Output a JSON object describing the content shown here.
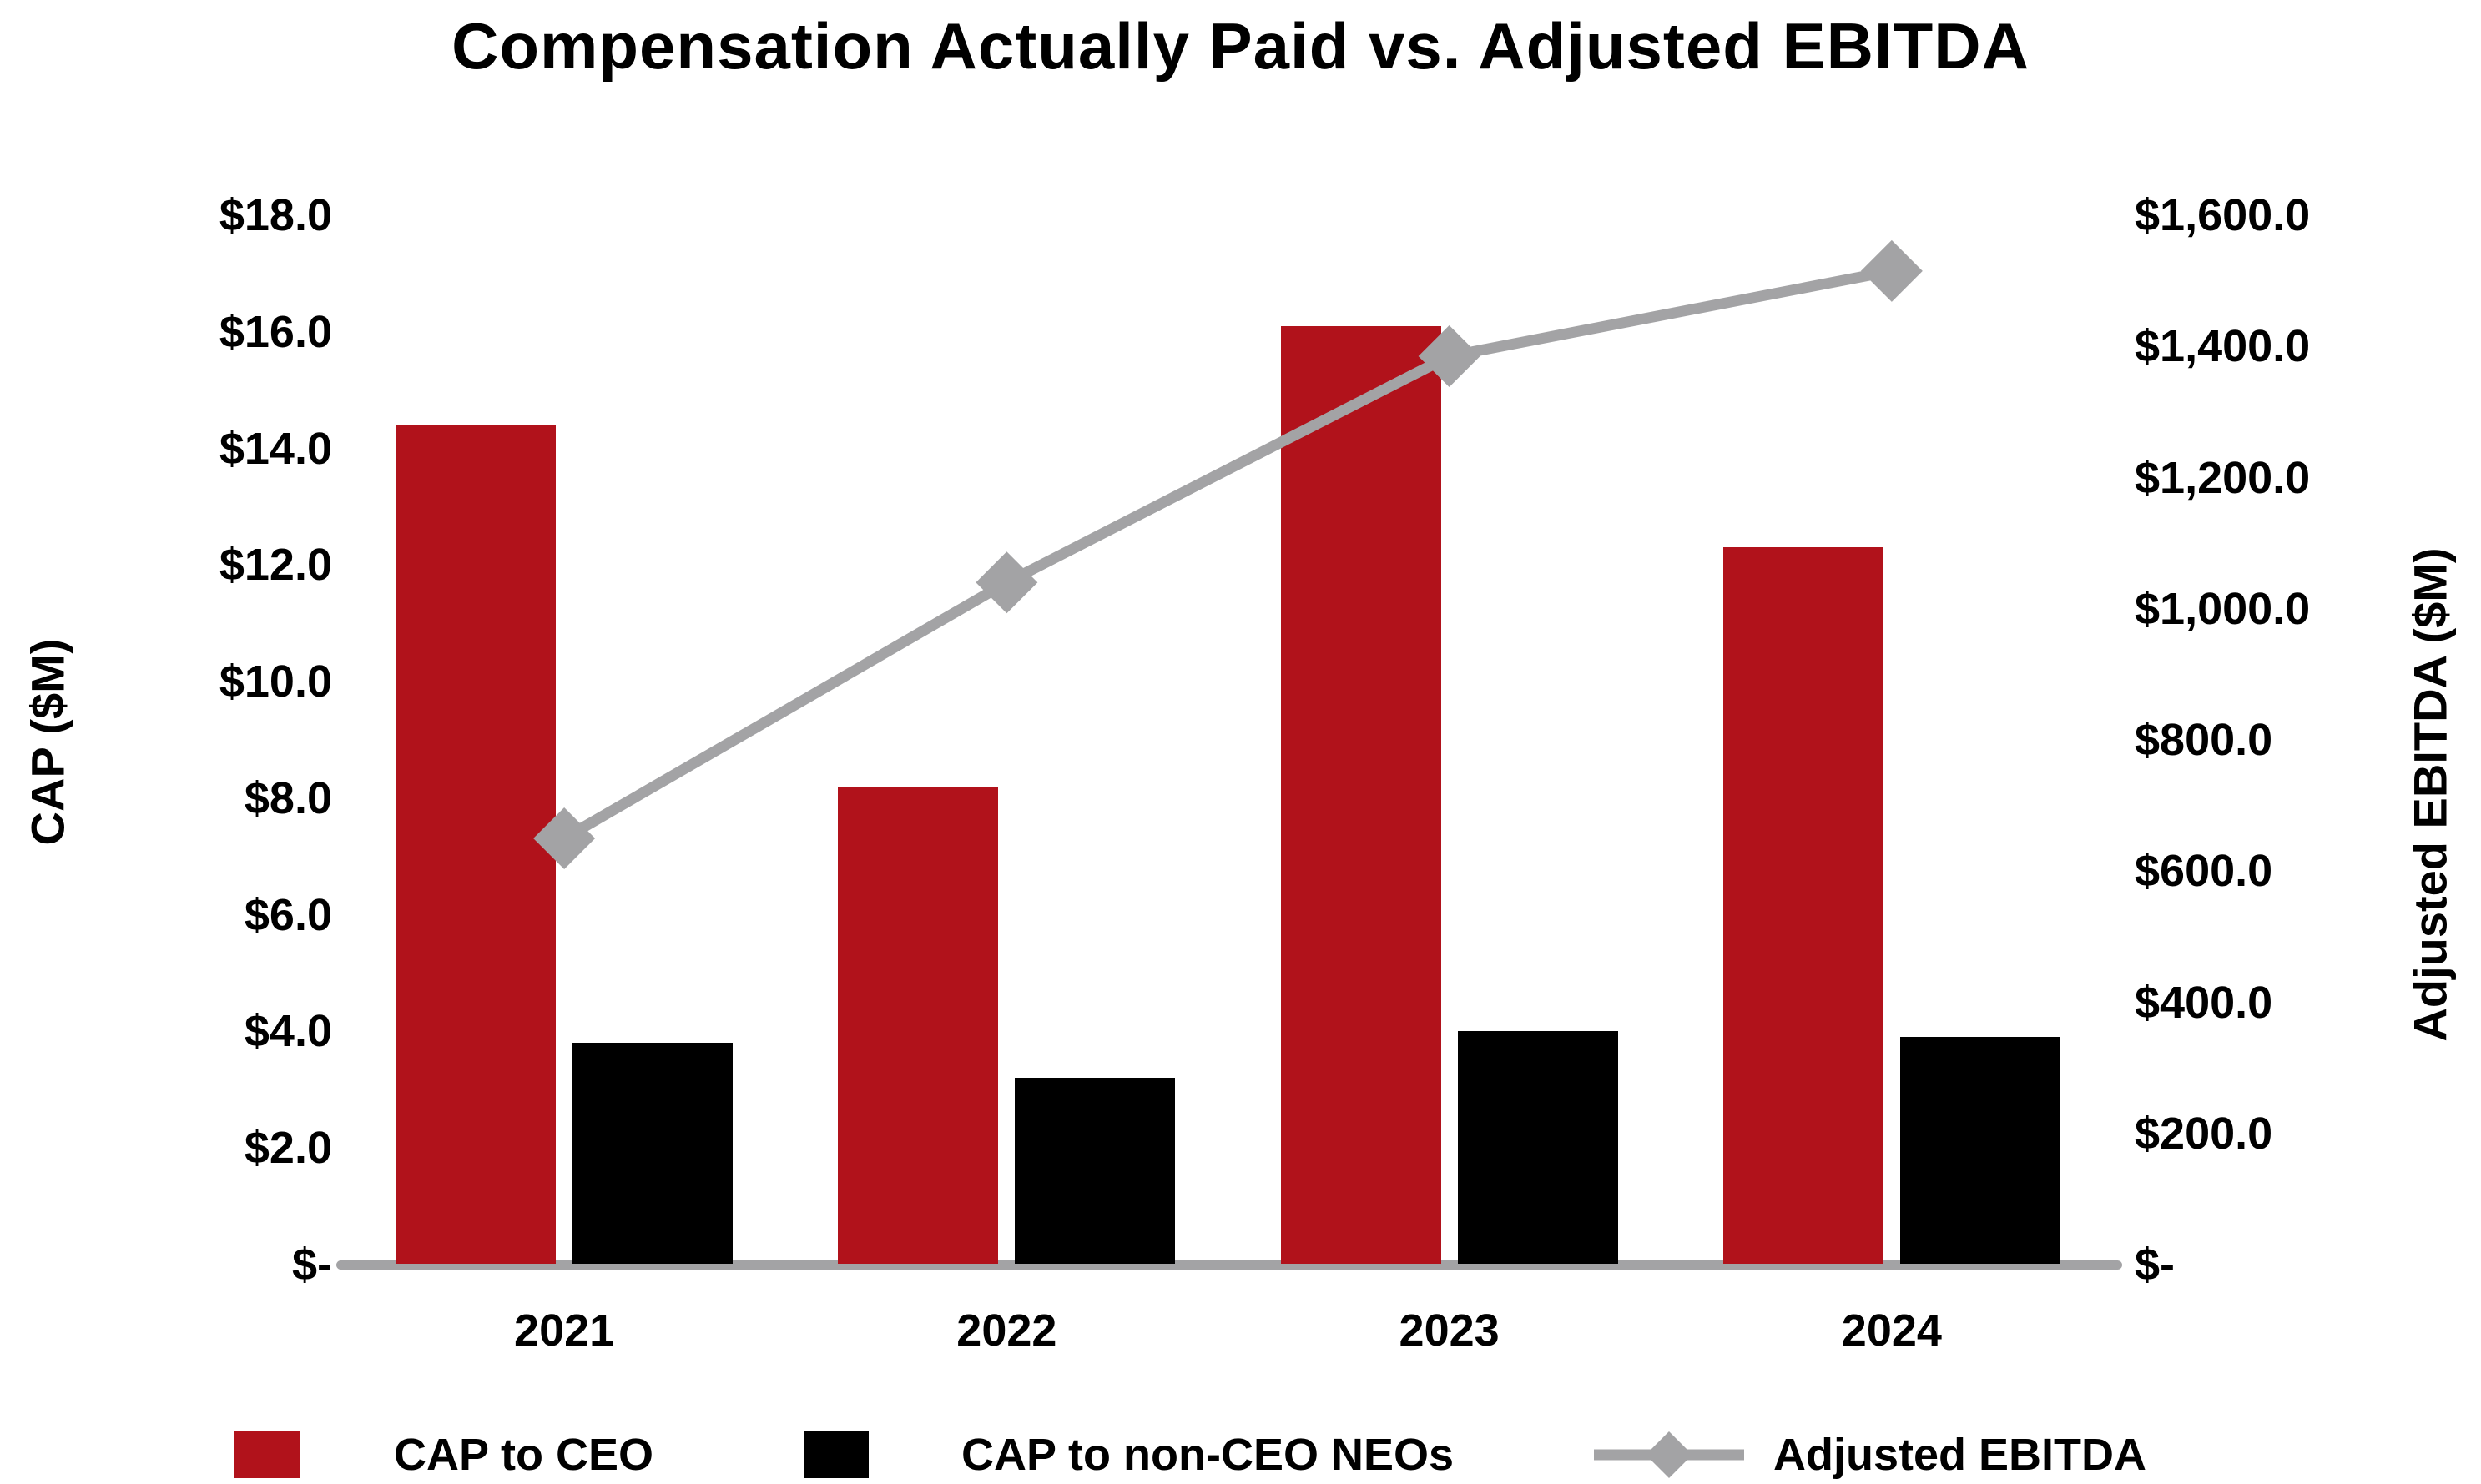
{
  "title": "Compensation Actually Paid vs. Adjusted EBITDA",
  "left_axis": {
    "title": "CAP ($M)",
    "ticks": [
      {
        "label": "$18.0",
        "value": 18
      },
      {
        "label": "$16.0",
        "value": 16
      },
      {
        "label": "$14.0",
        "value": 14
      },
      {
        "label": "$12.0",
        "value": 12
      },
      {
        "label": "$10.0",
        "value": 10
      },
      {
        "label": "$8.0",
        "value": 8
      },
      {
        "label": "$6.0",
        "value": 6
      },
      {
        "label": "$4.0",
        "value": 4
      },
      {
        "label": "$2.0",
        "value": 2
      },
      {
        "label": "$-",
        "value": 0
      }
    ]
  },
  "right_axis": {
    "title": "Adjusted EBITDA ($M)",
    "ticks": [
      {
        "label": "$1,600.0",
        "value": 1600
      },
      {
        "label": "$1,400.0",
        "value": 1400
      },
      {
        "label": "$1,200.0",
        "value": 1200
      },
      {
        "label": "$1,000.0",
        "value": 1000
      },
      {
        "label": "$800.0",
        "value": 800
      },
      {
        "label": "$600.0",
        "value": 600
      },
      {
        "label": "$400.0",
        "value": 400
      },
      {
        "label": "$200.0",
        "value": 200
      },
      {
        "label": "$-",
        "value": 0
      }
    ]
  },
  "x_axis": {
    "categories": [
      "2021",
      "2022",
      "2023",
      "2024"
    ]
  },
  "legend": [
    {
      "label": "CAP to CEO",
      "marker": "square",
      "color": "#B1121B"
    },
    {
      "label": "CAP to non-CEO NEOs",
      "marker": "square",
      "color": "#000000"
    },
    {
      "label": "Adjusted EBITDA",
      "marker": "line-diamond",
      "color": "#A3A3A5"
    }
  ],
  "colors": {
    "ceo_bar": "#B1121B",
    "neo_bar": "#000000",
    "ebitda_line": "#A3A3A5",
    "axis_line": "#A3A3A5",
    "text": "#000000",
    "background": "#FFFFFF"
  },
  "chart_data": {
    "type": "bar",
    "subtype": "grouped-bars-with-secondary-axis-line",
    "title": "Compensation Actually Paid vs. Adjusted EBITDA",
    "categories": [
      "2021",
      "2022",
      "2023",
      "2024"
    ],
    "series": [
      {
        "name": "CAP to CEO",
        "type": "bar",
        "axis": "left",
        "color": "#B1121B",
        "values": [
          14.4,
          8.2,
          16.1,
          12.3
        ]
      },
      {
        "name": "CAP to non-CEO NEOs",
        "type": "bar",
        "axis": "left",
        "color": "#000000",
        "values": [
          3.8,
          3.2,
          4.0,
          3.9
        ]
      },
      {
        "name": "Adjusted EBITDA",
        "type": "line",
        "axis": "right",
        "color": "#A3A3A5",
        "marker": "diamond",
        "values": [
          650.0,
          1040.0,
          1385.0,
          1515.0
        ]
      }
    ],
    "xlabel": "",
    "left_ylabel": "CAP ($M)",
    "right_ylabel": "Adjusted EBITDA ($M)",
    "left_ylim": [
      0,
      18
    ],
    "right_ylim": [
      0,
      1600
    ],
    "grid": false,
    "legend_position": "bottom"
  }
}
